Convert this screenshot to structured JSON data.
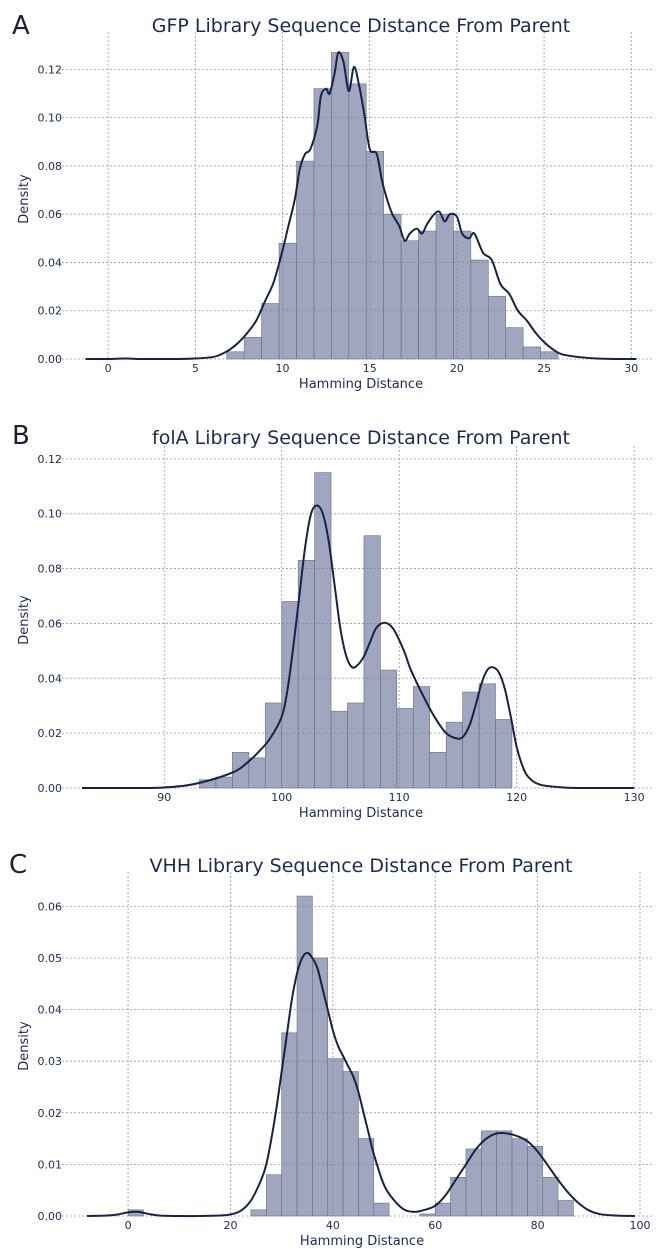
{
  "chart_data": [
    {
      "panel": "A",
      "type": "bar",
      "title": "GFP Library Sequence Distance From Parent",
      "xlabel": "Hamming Distance",
      "ylabel": "Density",
      "xlim": [
        -1.5,
        30.5
      ],
      "ylim": [
        0,
        0.133
      ],
      "xticks": [
        0,
        5,
        10,
        15,
        20,
        25,
        30
      ],
      "yticks": [
        0.0,
        0.02,
        0.04,
        0.06,
        0.08,
        0.1,
        0.12
      ],
      "ytick_decimals": 2,
      "grid": true,
      "bins": {
        "start": 6.8,
        "width": 1.0
      },
      "values": [
        0.003,
        0.009,
        0.023,
        0.048,
        0.082,
        0.112,
        0.127,
        0.114,
        0.086,
        0.06,
        0.049,
        0.053,
        0.06,
        0.053,
        0.041,
        0.026,
        0.013,
        0.005,
        0.003
      ],
      "kde": {
        "x": [
          -1.3,
          0,
          1,
          2,
          4,
          5,
          6,
          6.5,
          7,
          7.5,
          8,
          8.5,
          9,
          9.5,
          10,
          10.3,
          10.7,
          11,
          11.3,
          11.6,
          12,
          12.2,
          12.5,
          12.7,
          13,
          13.2,
          13.5,
          13.8,
          14.1,
          14.4,
          14.7,
          15,
          15.4,
          15.7,
          16,
          16.3,
          16.7,
          17,
          17.3,
          17.7,
          18,
          18.3,
          18.7,
          19,
          19.3,
          19.6,
          20,
          20.3,
          20.7,
          21,
          21.5,
          22,
          22.5,
          23,
          23.5,
          24,
          24.5,
          25,
          25.5,
          26,
          27,
          28,
          29,
          30.3
        ],
        "y": [
          0.0,
          0.0,
          0.0002,
          0.0,
          0.0,
          0.0002,
          0.0008,
          0.002,
          0.004,
          0.007,
          0.011,
          0.016,
          0.024,
          0.032,
          0.045,
          0.054,
          0.066,
          0.079,
          0.085,
          0.087,
          0.097,
          0.109,
          0.112,
          0.11,
          0.119,
          0.127,
          0.123,
          0.111,
          0.121,
          0.113,
          0.101,
          0.087,
          0.085,
          0.074,
          0.066,
          0.06,
          0.055,
          0.049,
          0.052,
          0.054,
          0.052,
          0.056,
          0.06,
          0.061,
          0.057,
          0.06,
          0.059,
          0.052,
          0.05,
          0.052,
          0.044,
          0.041,
          0.031,
          0.027,
          0.02,
          0.016,
          0.011,
          0.007,
          0.004,
          0.002,
          0.0008,
          0.0002,
          0.0,
          0.0
        ]
      }
    },
    {
      "panel": "B",
      "type": "bar",
      "title": "folA Library Sequence Distance From Parent",
      "xlabel": "Hamming Distance",
      "ylabel": "Density",
      "xlim": [
        83,
        130.5
      ],
      "ylim": [
        0,
        0.1225
      ],
      "xticks": [
        90,
        100,
        110,
        120,
        130
      ],
      "yticks": [
        0.0,
        0.02,
        0.04,
        0.06,
        0.08,
        0.1,
        0.12
      ],
      "ytick_decimals": 2,
      "grid": true,
      "bins": {
        "start": 93.0,
        "width": 1.4
      },
      "values": [
        0.003,
        0.004,
        0.013,
        0.011,
        0.031,
        0.068,
        0.083,
        0.115,
        0.028,
        0.031,
        0.092,
        0.043,
        0.029,
        0.037,
        0.013,
        0.024,
        0.035,
        0.038,
        0.025
      ],
      "kde": {
        "x": [
          83,
          88,
          90,
          92,
          94,
          96,
          97,
          98,
          99,
          100,
          100.5,
          101,
          101.5,
          102,
          102.5,
          103,
          103.5,
          104,
          104.5,
          105,
          105.5,
          106,
          106.5,
          107,
          107.5,
          108,
          108.5,
          109,
          109.5,
          110,
          110.5,
          111,
          112,
          113,
          114,
          115,
          115.5,
          116,
          116.5,
          117,
          117.5,
          118,
          118.5,
          119,
          119.5,
          120,
          120.5,
          121,
          122,
          124,
          126,
          130
        ],
        "y": [
          0.0,
          0.0,
          0.0002,
          0.001,
          0.003,
          0.006,
          0.009,
          0.013,
          0.018,
          0.026,
          0.036,
          0.052,
          0.07,
          0.088,
          0.1,
          0.103,
          0.1,
          0.09,
          0.074,
          0.058,
          0.048,
          0.044,
          0.045,
          0.048,
          0.053,
          0.058,
          0.06,
          0.06,
          0.058,
          0.054,
          0.049,
          0.043,
          0.034,
          0.026,
          0.02,
          0.018,
          0.019,
          0.023,
          0.03,
          0.038,
          0.043,
          0.044,
          0.042,
          0.036,
          0.026,
          0.015,
          0.008,
          0.004,
          0.0012,
          0.0002,
          0.0,
          0.0
        ]
      }
    },
    {
      "panel": "C",
      "type": "bar",
      "title": "VHH Library Sequence Distance From Parent",
      "xlabel": "Hamming Distance",
      "ylabel": "Density",
      "xlim": [
        -9,
        100
      ],
      "ylim": [
        0,
        0.0655
      ],
      "xticks": [
        0,
        20,
        40,
        60,
        80,
        100
      ],
      "yticks": [
        0.0,
        0.01,
        0.02,
        0.03,
        0.04,
        0.05,
        0.06
      ],
      "ytick_decimals": 2,
      "grid": true,
      "bins": [
        {
          "x0": 0,
          "x1": 3,
          "v": 0.0012
        },
        {
          "x0": 24,
          "x1": 27,
          "v": 0.0012
        },
        {
          "x0": 27,
          "x1": 30,
          "v": 0.008
        },
        {
          "x0": 30,
          "x1": 33,
          "v": 0.0355
        },
        {
          "x0": 33,
          "x1": 36,
          "v": 0.062
        },
        {
          "x0": 36,
          "x1": 39,
          "v": 0.05
        },
        {
          "x0": 39,
          "x1": 42,
          "v": 0.0305
        },
        {
          "x0": 42,
          "x1": 45,
          "v": 0.028
        },
        {
          "x0": 45,
          "x1": 48,
          "v": 0.015
        },
        {
          "x0": 48,
          "x1": 51,
          "v": 0.0025
        },
        {
          "x0": 57,
          "x1": 60,
          "v": 0.0004
        },
        {
          "x0": 60,
          "x1": 63,
          "v": 0.0025
        },
        {
          "x0": 63,
          "x1": 66,
          "v": 0.0075
        },
        {
          "x0": 66,
          "x1": 69,
          "v": 0.013
        },
        {
          "x0": 69,
          "x1": 72,
          "v": 0.0165
        },
        {
          "x0": 72,
          "x1": 75,
          "v": 0.0165
        },
        {
          "x0": 75,
          "x1": 78,
          "v": 0.015
        },
        {
          "x0": 78,
          "x1": 81,
          "v": 0.0135
        },
        {
          "x0": 81,
          "x1": 84,
          "v": 0.0075
        },
        {
          "x0": 84,
          "x1": 87,
          "v": 0.003
        }
      ],
      "kde": {
        "x": [
          -8,
          -4,
          -2,
          0,
          2,
          4,
          6,
          10,
          14,
          18,
          20,
          22,
          24,
          26,
          27,
          28,
          29,
          30,
          31,
          32,
          33,
          34,
          35,
          36,
          37,
          38,
          39,
          40,
          41,
          42,
          43,
          44,
          45,
          46,
          47,
          48,
          50,
          52,
          54,
          56,
          58,
          60,
          62,
          64,
          66,
          68,
          70,
          72,
          74,
          76,
          78,
          80,
          82,
          84,
          86,
          88,
          90,
          92,
          95,
          99
        ],
        "y": [
          0.0,
          0.0001,
          0.0003,
          0.0007,
          0.0008,
          0.0004,
          0.0001,
          0.0,
          0.0,
          0.0001,
          0.0003,
          0.001,
          0.003,
          0.007,
          0.01,
          0.015,
          0.021,
          0.028,
          0.035,
          0.042,
          0.047,
          0.05,
          0.051,
          0.05,
          0.048,
          0.044,
          0.04,
          0.036,
          0.033,
          0.031,
          0.029,
          0.027,
          0.024,
          0.02,
          0.016,
          0.012,
          0.006,
          0.003,
          0.0012,
          0.0008,
          0.0012,
          0.002,
          0.004,
          0.007,
          0.01,
          0.013,
          0.015,
          0.016,
          0.016,
          0.0155,
          0.0145,
          0.0125,
          0.0098,
          0.007,
          0.0045,
          0.0025,
          0.0011,
          0.0004,
          0.0001,
          0.0
        ]
      }
    }
  ]
}
